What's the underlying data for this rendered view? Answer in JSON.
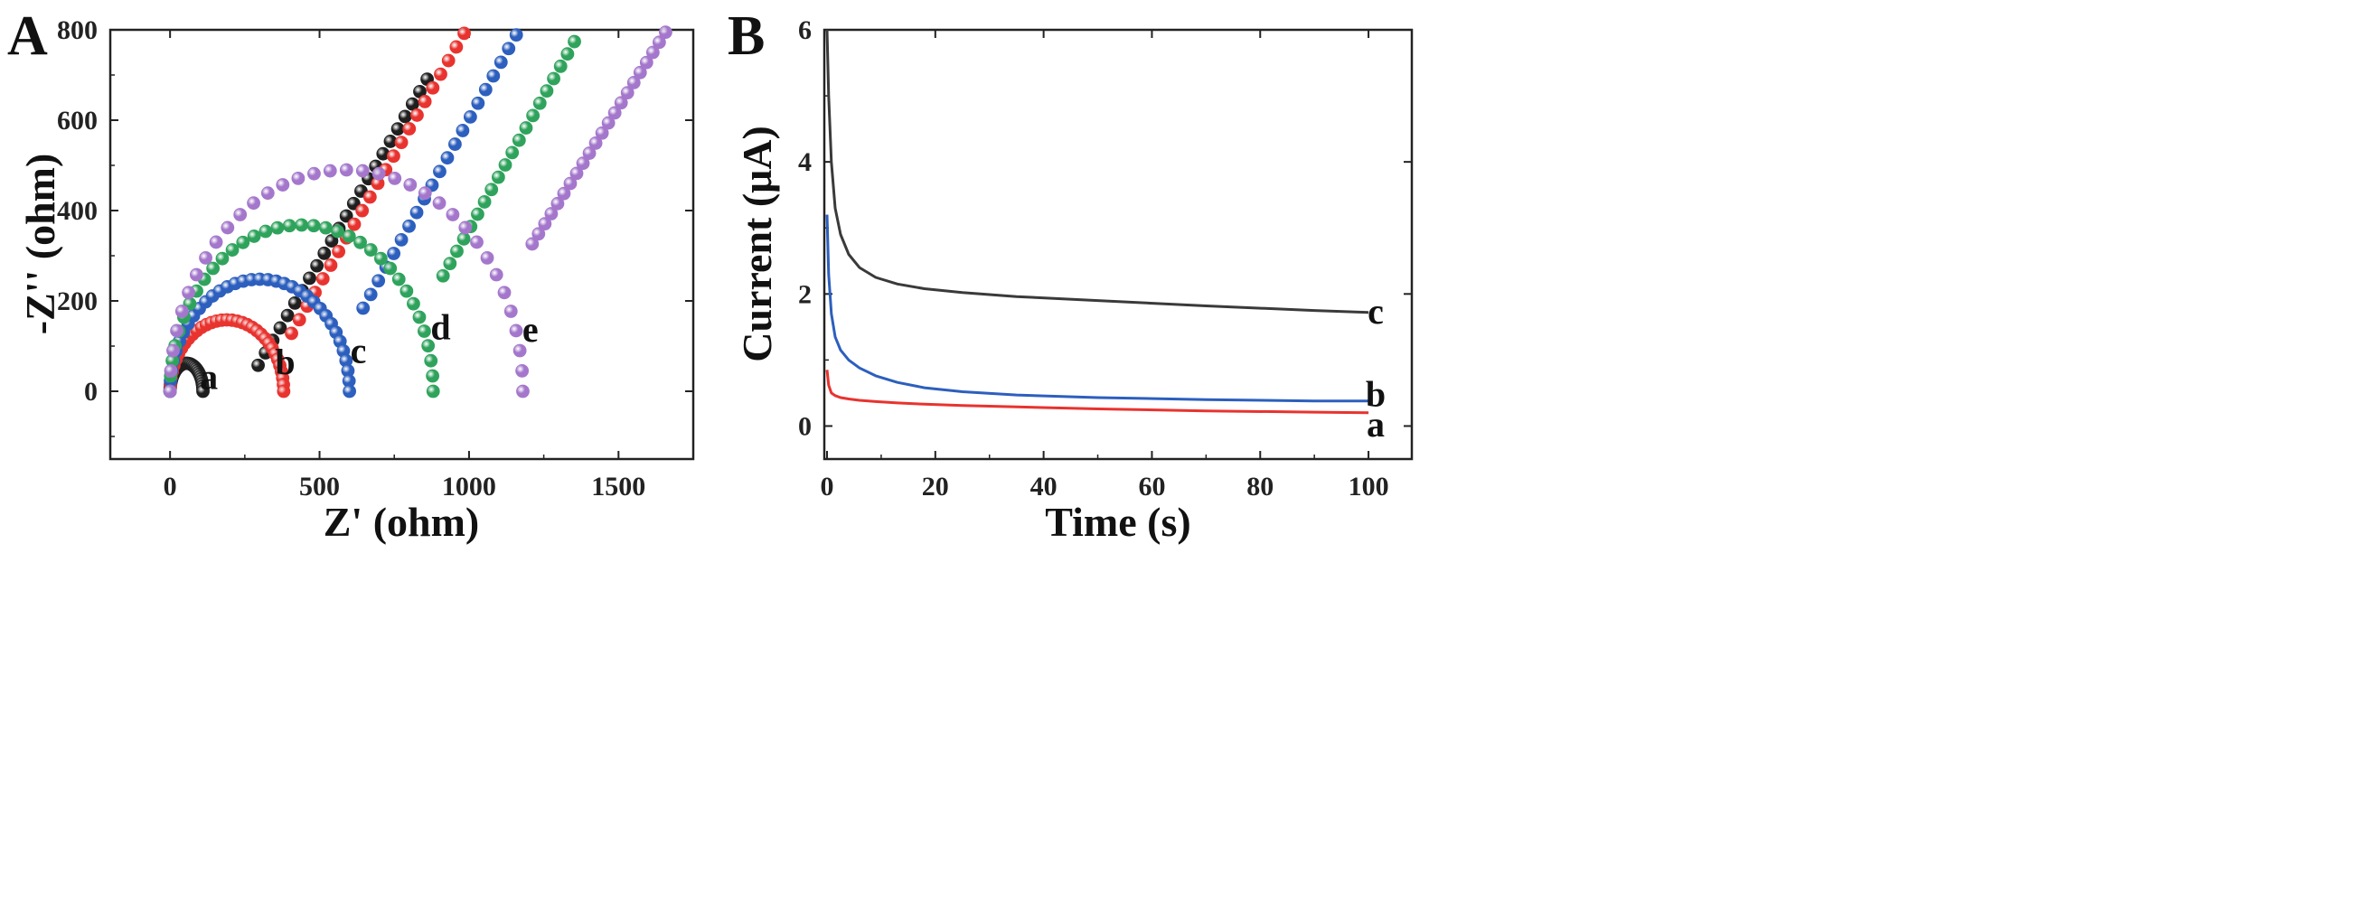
{
  "chart_data": [
    {
      "panel": "A",
      "type": "scatter",
      "title": "",
      "xlabel": "Z' (ohm)",
      "ylabel": "-Z'' (ohm)",
      "xlim": [
        -200,
        1750
      ],
      "ylim": [
        -150,
        800
      ],
      "xticks": [
        0,
        500,
        1000,
        1500
      ],
      "yticks": [
        0,
        200,
        400,
        600,
        800
      ],
      "grid": false,
      "legend": "none",
      "series": [
        {
          "name": "a",
          "color": "#1f1f1f",
          "Rct": 110,
          "arc_height": 62,
          "tail_slope": 1.12,
          "tail_start": 270,
          "x_max": 860,
          "label_at": [
            130,
            5
          ]
        },
        {
          "name": "b",
          "color": "#e8332f",
          "Rct": 380,
          "arc_height": 158,
          "tail_slope": 1.15,
          "tail_start": 380,
          "x_max": 1010,
          "label_at": [
            385,
            38
          ]
        },
        {
          "name": "c",
          "color": "#2c5fbe",
          "Rct": 600,
          "arc_height": 248,
          "tail_slope": 1.18,
          "tail_start": 620,
          "x_max": 1235,
          "label_at": [
            630,
            63
          ]
        },
        {
          "name": "d",
          "color": "#2fa35c",
          "Rct": 880,
          "arc_height": 368,
          "tail_slope": 1.18,
          "tail_start": 890,
          "x_max": 1445,
          "label_at": [
            905,
            115
          ]
        },
        {
          "name": "e",
          "color": "#a477cc",
          "Rct": 1180,
          "arc_height": 490,
          "tail_slope": 1.05,
          "tail_start": 1190,
          "x_max": 1700,
          "label_at": [
            1205,
            110
          ]
        }
      ]
    },
    {
      "panel": "B",
      "type": "line",
      "title": "",
      "xlabel": "Time (s)",
      "ylabel": "Current (μA)",
      "xlim": [
        -0.5,
        108
      ],
      "ylim": [
        -0.5,
        6
      ],
      "xticks": [
        0,
        20,
        40,
        60,
        80,
        100
      ],
      "yticks": [
        0,
        2,
        4,
        6
      ],
      "grid": false,
      "legend": "none",
      "series": [
        {
          "name": "c",
          "color": "#3a3a3a",
          "x": [
            0,
            0.3,
            0.8,
            1.5,
            2.5,
            4,
            6,
            9,
            13,
            18,
            25,
            35,
            50,
            70,
            90,
            100
          ],
          "y": [
            6.0,
            5.0,
            4.0,
            3.3,
            2.9,
            2.6,
            2.4,
            2.25,
            2.15,
            2.08,
            2.02,
            1.96,
            1.9,
            1.82,
            1.75,
            1.72
          ]
        },
        {
          "name": "b",
          "color": "#2c5fbe",
          "x": [
            0,
            0.3,
            0.8,
            1.5,
            2.5,
            4,
            6,
            9,
            13,
            18,
            25,
            35,
            50,
            70,
            90,
            100
          ],
          "y": [
            3.2,
            2.3,
            1.7,
            1.35,
            1.15,
            1.0,
            0.88,
            0.76,
            0.66,
            0.58,
            0.52,
            0.47,
            0.43,
            0.4,
            0.38,
            0.38
          ]
        },
        {
          "name": "a",
          "color": "#e8332f",
          "x": [
            0,
            0.3,
            0.8,
            1.5,
            2.5,
            4,
            6,
            9,
            13,
            18,
            25,
            35,
            50,
            70,
            90,
            100
          ],
          "y": [
            0.85,
            0.62,
            0.5,
            0.46,
            0.43,
            0.41,
            0.39,
            0.37,
            0.35,
            0.33,
            0.31,
            0.29,
            0.26,
            0.23,
            0.21,
            0.2
          ]
        }
      ]
    }
  ]
}
